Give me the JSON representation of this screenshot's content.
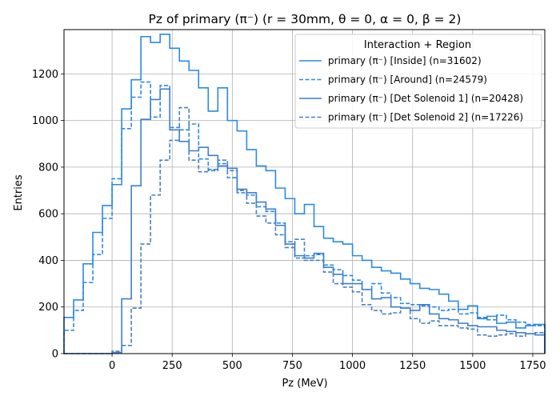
{
  "chart_data": {
    "type": "histogram-step",
    "title": "Pz of primary (π⁻) (r = 30mm, θ = 0, α = 0, β = 2)",
    "xlabel": "Pz (MeV)",
    "ylabel": "Entries",
    "xlim": [
      -200,
      1800
    ],
    "ylim": [
      0,
      1390
    ],
    "xticks": [
      0,
      250,
      500,
      750,
      1000,
      1250,
      1500,
      1750
    ],
    "yticks": [
      0,
      200,
      400,
      600,
      800,
      1000,
      1200
    ],
    "grid": true,
    "legend_title": "Interaction + Region",
    "legend_placement": "top-right",
    "bin_edges": [
      -200,
      -160,
      -120,
      -80,
      -40,
      0,
      40,
      80,
      120,
      160,
      200,
      240,
      280,
      320,
      360,
      400,
      440,
      480,
      520,
      560,
      600,
      640,
      680,
      720,
      760,
      800,
      840,
      880,
      920,
      960,
      1000,
      1040,
      1080,
      1120,
      1160,
      1200,
      1240,
      1280,
      1320,
      1360,
      1400,
      1440,
      1480,
      1520,
      1560,
      1600,
      1640,
      1680,
      1720,
      1760,
      1800
    ],
    "series": [
      {
        "name": "primary (π⁻) [Inside] (n=31602)",
        "color": "#2a8ae6",
        "dash": "solid",
        "values": [
          155,
          230,
          385,
          520,
          635,
          725,
          1050,
          1175,
          1360,
          1335,
          1370,
          1310,
          1255,
          1215,
          1140,
          1040,
          1140,
          1000,
          955,
          875,
          805,
          785,
          710,
          665,
          600,
          640,
          545,
          495,
          480,
          470,
          420,
          400,
          370,
          355,
          345,
          320,
          300,
          280,
          275,
          255,
          225,
          190,
          205,
          150,
          160,
          130,
          135,
          110,
          120,
          125
        ]
      },
      {
        "name": "primary (π⁻) [Around] (n=24579)",
        "color": "#2a8ae6",
        "dash": "dashed",
        "values": [
          100,
          185,
          305,
          425,
          580,
          750,
          965,
          1100,
          1165,
          1015,
          1150,
          970,
          960,
          985,
          835,
          785,
          815,
          755,
          690,
          680,
          630,
          610,
          560,
          480,
          410,
          420,
          425,
          380,
          360,
          335,
          315,
          275,
          300,
          260,
          240,
          215,
          210,
          205,
          200,
          185,
          190,
          170,
          175,
          155,
          145,
          165,
          145,
          135,
          125,
          120
        ]
      },
      {
        "name": "primary (π⁻) [Det Solenoid 1] (n=20428)",
        "color": "#3d7fd0",
        "dash": "solid",
        "values": [
          0,
          0,
          0,
          0,
          0,
          5,
          235,
          720,
          1005,
          1090,
          1135,
          960,
          910,
          870,
          885,
          850,
          805,
          795,
          705,
          690,
          650,
          620,
          550,
          470,
          420,
          410,
          430,
          370,
          340,
          300,
          300,
          275,
          235,
          240,
          200,
          195,
          185,
          210,
          170,
          150,
          145,
          130,
          120,
          115,
          115,
          100,
          95,
          90,
          85,
          80
        ]
      },
      {
        "name": "primary (π⁻) [Det Solenoid 2] (n=17226)",
        "color": "#4682c0",
        "dash": "dashed",
        "values": [
          0,
          0,
          0,
          0,
          0,
          10,
          35,
          195,
          470,
          680,
          830,
          915,
          1055,
          830,
          780,
          790,
          830,
          785,
          700,
          645,
          590,
          560,
          510,
          455,
          490,
          400,
          400,
          350,
          300,
          285,
          265,
          210,
          185,
          170,
          175,
          195,
          150,
          130,
          140,
          120,
          120,
          110,
          105,
          80,
          75,
          80,
          85,
          75,
          85,
          90
        ]
      }
    ]
  }
}
